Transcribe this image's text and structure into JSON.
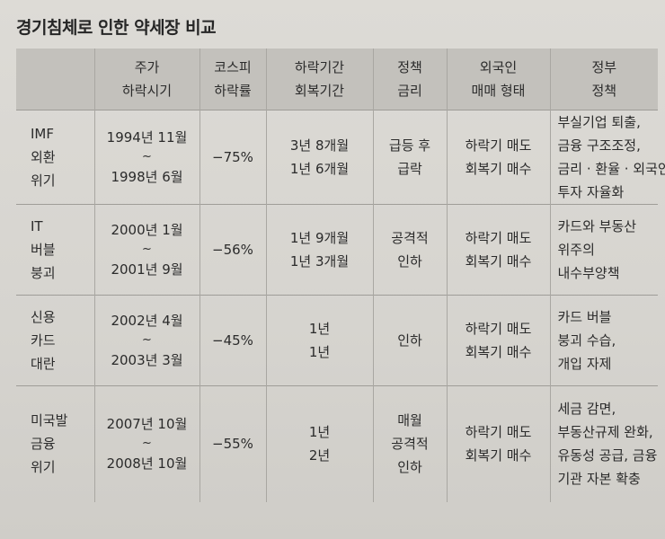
{
  "title": "경기침체로 인한 약세장 비교",
  "headers": [
    [
      "",
      ""
    ],
    [
      "주가",
      "하락시기"
    ],
    [
      "코스피",
      "하락률"
    ],
    [
      "하락기간",
      "회복기간"
    ],
    [
      "정책",
      "금리"
    ],
    [
      "외국인",
      "매매 형태"
    ],
    [
      "정부",
      "정책"
    ]
  ],
  "rows": [
    {
      "name": [
        "IMF",
        "외환",
        "위기"
      ],
      "period": [
        "1994년 11월",
        "~",
        "1998년 6월"
      ],
      "drop": "−75%",
      "duration": [
        "3년 8개월",
        "1년 6개월"
      ],
      "rate": [
        "급등 후",
        "급락"
      ],
      "foreign": [
        "하락기 매도",
        "회복기 매수"
      ],
      "policy": [
        "부실기업 퇴출,",
        "금융 구조조정,",
        "금리 · 환율 · 외국인",
        "투자 자율화"
      ]
    },
    {
      "name": [
        "IT",
        "버블",
        "붕괴"
      ],
      "period": [
        "2000년 1월",
        "~",
        "2001년 9월"
      ],
      "drop": "−56%",
      "duration": [
        "1년 9개월",
        "1년 3개월"
      ],
      "rate": [
        "공격적",
        "인하"
      ],
      "foreign": [
        "하락기 매도",
        "회복기 매수"
      ],
      "policy": [
        "카드와 부동산",
        "위주의",
        "내수부양책"
      ]
    },
    {
      "name": [
        "신용",
        "카드",
        "대란"
      ],
      "period": [
        "2002년 4월",
        "~",
        "2003년 3월"
      ],
      "drop": "−45%",
      "duration": [
        "1년",
        "1년"
      ],
      "rate": [
        "인하"
      ],
      "foreign": [
        "하락기 매도",
        "회복기 매수"
      ],
      "policy": [
        "카드 버블",
        "붕괴 수습,",
        "개입 자제"
      ]
    },
    {
      "name": [
        "미국발",
        "금융",
        "위기"
      ],
      "period": [
        "2007년 10월",
        "~",
        "2008년 10월"
      ],
      "drop": "−55%",
      "duration": [
        "1년",
        "2년"
      ],
      "rate": [
        "매월",
        "공격적",
        "인하"
      ],
      "foreign": [
        "하락기 매도",
        "회복기 매수"
      ],
      "policy": [
        "세금 감면,",
        "부동산규제 완화,",
        "유동성 공급, 금융",
        "기관 자본 확충"
      ]
    }
  ]
}
